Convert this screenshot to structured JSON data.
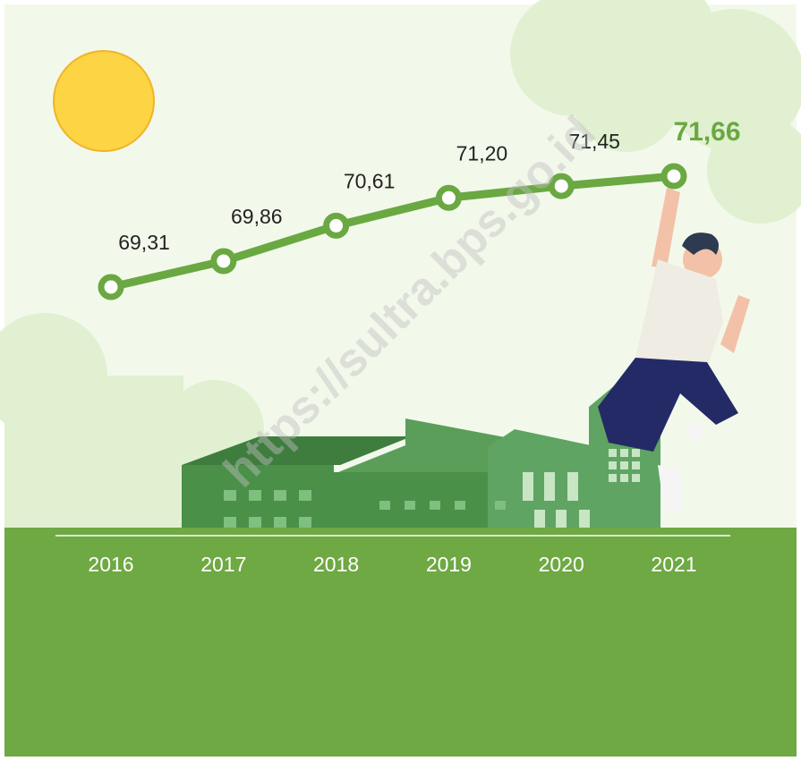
{
  "chart_data": {
    "type": "line",
    "categories": [
      "2016",
      "2017",
      "2018",
      "2019",
      "2020",
      "2021"
    ],
    "values": [
      69.31,
      69.86,
      70.61,
      71.2,
      71.45,
      71.66
    ],
    "value_labels": [
      "69,31",
      "69,86",
      "70,61",
      "71,20",
      "71,45",
      "71,66"
    ],
    "color": "#6aa842"
  },
  "watermark": "https://sultra.bps.go.id"
}
